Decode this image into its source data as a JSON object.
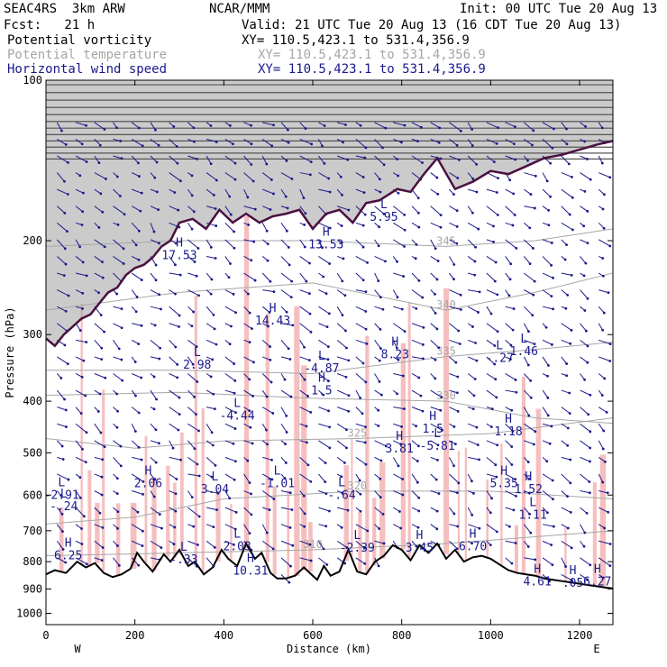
{
  "header": {
    "model": "SEAC4RS  3km ARW",
    "org": "NCAR/MMM",
    "init": "Init: 00 UTC Tue 20 Aug 13",
    "fcst": "Fcst:   21 h",
    "valid": "Valid: 21 UTC Tue 20 Aug 13 (16 CDT Tue 20 Aug 13)"
  },
  "fields": [
    {
      "name": "Potential vorticity",
      "xy": "XY= 110.5,423.1 to 531.4,356.9",
      "color": "#000000"
    },
    {
      "name": "Potential temperature",
      "xy": "XY= 110.5,423.1 to 531.4,356.9",
      "color": "#a6a6a6"
    },
    {
      "name": "Horizontal wind speed",
      "xy": "XY= 110.5,423.1 to 531.4,356.9",
      "color": "#1a1a8c"
    }
  ],
  "chart_data": {
    "type": "cross-section",
    "xlabel": "Distance (km)",
    "ylabel": "Pressure (hPa)",
    "xlim": [
      0,
      1275
    ],
    "ylim": [
      1050,
      100
    ],
    "y_scale": "log",
    "xticks": [
      0,
      200,
      400,
      600,
      800,
      1000,
      1200
    ],
    "yticks": [
      100,
      200,
      300,
      400,
      500,
      600,
      700,
      800,
      900,
      1000
    ],
    "end_labels": {
      "left": "W",
      "right": "E"
    },
    "colors": {
      "pv": "#4a1040",
      "theta": "#a6a6a6",
      "wind": "#1a1a8c",
      "shade": "#f4b8b8",
      "terrain": "#000000"
    },
    "terrain_hpa": [
      [
        0,
        845
      ],
      [
        20,
        830
      ],
      [
        45,
        840
      ],
      [
        70,
        800
      ],
      [
        90,
        820
      ],
      [
        110,
        805
      ],
      [
        130,
        840
      ],
      [
        150,
        855
      ],
      [
        170,
        845
      ],
      [
        190,
        825
      ],
      [
        205,
        770
      ],
      [
        220,
        800
      ],
      [
        240,
        835
      ],
      [
        265,
        775
      ],
      [
        280,
        800
      ],
      [
        300,
        760
      ],
      [
        320,
        815
      ],
      [
        335,
        800
      ],
      [
        355,
        845
      ],
      [
        375,
        820
      ],
      [
        395,
        760
      ],
      [
        410,
        790
      ],
      [
        430,
        815
      ],
      [
        450,
        740
      ],
      [
        470,
        790
      ],
      [
        485,
        770
      ],
      [
        505,
        840
      ],
      [
        520,
        860
      ],
      [
        540,
        860
      ],
      [
        560,
        850
      ],
      [
        580,
        820
      ],
      [
        600,
        850
      ],
      [
        610,
        865
      ],
      [
        625,
        815
      ],
      [
        640,
        850
      ],
      [
        660,
        835
      ],
      [
        680,
        760
      ],
      [
        700,
        835
      ],
      [
        720,
        845
      ],
      [
        740,
        800
      ],
      [
        760,
        780
      ],
      [
        780,
        745
      ],
      [
        800,
        760
      ],
      [
        820,
        795
      ],
      [
        840,
        745
      ],
      [
        860,
        770
      ],
      [
        880,
        740
      ],
      [
        900,
        790
      ],
      [
        920,
        760
      ],
      [
        940,
        800
      ],
      [
        960,
        785
      ],
      [
        980,
        780
      ],
      [
        1000,
        790
      ],
      [
        1020,
        810
      ],
      [
        1040,
        830
      ],
      [
        1060,
        840
      ],
      [
        1080,
        845
      ],
      [
        1100,
        850
      ],
      [
        1120,
        860
      ],
      [
        1140,
        865
      ],
      [
        1160,
        870
      ],
      [
        1180,
        875
      ],
      [
        1200,
        880
      ],
      [
        1220,
        885
      ],
      [
        1240,
        890
      ],
      [
        1260,
        895
      ],
      [
        1275,
        898
      ]
    ],
    "pv_tropopause_hpa": [
      [
        0,
        305
      ],
      [
        20,
        315
      ],
      [
        40,
        300
      ],
      [
        60,
        290
      ],
      [
        80,
        280
      ],
      [
        100,
        275
      ],
      [
        120,
        262
      ],
      [
        140,
        250
      ],
      [
        160,
        245
      ],
      [
        180,
        232
      ],
      [
        200,
        225
      ],
      [
        220,
        222
      ],
      [
        240,
        215
      ],
      [
        260,
        205
      ],
      [
        280,
        200
      ],
      [
        300,
        185
      ],
      [
        330,
        182
      ],
      [
        360,
        190
      ],
      [
        390,
        175
      ],
      [
        420,
        185
      ],
      [
        450,
        178
      ],
      [
        480,
        185
      ],
      [
        510,
        180
      ],
      [
        540,
        178
      ],
      [
        570,
        175
      ],
      [
        600,
        190
      ],
      [
        630,
        178
      ],
      [
        660,
        175
      ],
      [
        690,
        185
      ],
      [
        720,
        170
      ],
      [
        750,
        168
      ],
      [
        790,
        160
      ],
      [
        820,
        162
      ],
      [
        850,
        150
      ],
      [
        880,
        140
      ],
      [
        920,
        160
      ],
      [
        960,
        155
      ],
      [
        1000,
        148
      ],
      [
        1040,
        150
      ],
      [
        1080,
        145
      ],
      [
        1120,
        140
      ],
      [
        1160,
        138
      ],
      [
        1200,
        135
      ],
      [
        1240,
        132
      ],
      [
        1275,
        130
      ]
    ],
    "theta_contours": [
      {
        "label": "310",
        "pts": [
          [
            0,
            780
          ],
          [
            300,
            770
          ],
          [
            600,
            760
          ],
          [
            900,
            740
          ],
          [
            1275,
            700
          ]
        ]
      },
      {
        "label": "320",
        "pts": [
          [
            0,
            680
          ],
          [
            200,
            660
          ],
          [
            400,
            610
          ],
          [
            700,
            590
          ],
          [
            1000,
            590
          ],
          [
            1275,
            610
          ]
        ]
      },
      {
        "label": "325",
        "pts": [
          [
            0,
            470
          ],
          [
            200,
            490
          ],
          [
            400,
            475
          ],
          [
            700,
            470
          ],
          [
            1000,
            460
          ],
          [
            1275,
            430
          ]
        ]
      },
      {
        "label": "330",
        "pts": [
          [
            0,
            390
          ],
          [
            300,
            385
          ],
          [
            600,
            395
          ],
          [
            900,
            400
          ],
          [
            1100,
            430
          ],
          [
            1275,
            440
          ]
        ]
      },
      {
        "label": "335",
        "pts": [
          [
            0,
            350
          ],
          [
            300,
            350
          ],
          [
            600,
            355
          ],
          [
            900,
            330
          ],
          [
            1100,
            320
          ],
          [
            1275,
            310
          ]
        ]
      },
      {
        "label": "340",
        "pts": [
          [
            0,
            270
          ],
          [
            300,
            250
          ],
          [
            600,
            240
          ],
          [
            900,
            270
          ],
          [
            1100,
            250
          ],
          [
            1275,
            230
          ]
        ]
      },
      {
        "label": "345",
        "pts": [
          [
            0,
            205
          ],
          [
            300,
            200
          ],
          [
            600,
            200
          ],
          [
            900,
            205
          ],
          [
            1100,
            200
          ],
          [
            1275,
            190
          ]
        ]
      }
    ],
    "extrema_labels": [
      {
        "t": "H",
        "v": "17.53",
        "x": 300,
        "p": 215
      },
      {
        "t": "H",
        "v": "13.53",
        "x": 630,
        "p": 205
      },
      {
        "t": "H",
        "v": "14.43",
        "x": 510,
        "p": 285
      },
      {
        "t": "L",
        "v": "5.95",
        "x": 760,
        "p": 182
      },
      {
        "t": "L",
        "v": "2.98",
        "x": 340,
        "p": 345
      },
      {
        "t": "L",
        "v": "-4.87",
        "x": 620,
        "p": 350
      },
      {
        "t": "H",
        "v": "8.23",
        "x": 785,
        "p": 330
      },
      {
        "t": "L",
        "v": "-.27",
        "x": 1020,
        "p": 335
      },
      {
        "t": "L",
        "v": "1.46",
        "x": 1075,
        "p": 325
      },
      {
        "t": "H",
        "v": "1.5",
        "x": 620,
        "p": 385
      },
      {
        "t": "L",
        "v": "-4.44",
        "x": 430,
        "p": 430
      },
      {
        "t": "H",
        "v": "1.18",
        "x": 1040,
        "p": 460
      },
      {
        "t": "H",
        "v": "1.5",
        "x": 870,
        "p": 455
      },
      {
        "t": "L",
        "v": "-5.81",
        "x": 880,
        "p": 490
      },
      {
        "t": "H",
        "v": "3.81",
        "x": 795,
        "p": 495
      },
      {
        "t": "H",
        "v": "2.06",
        "x": 230,
        "p": 575
      },
      {
        "t": "H",
        "v": "5.35",
        "x": 1030,
        "p": 575
      },
      {
        "t": "H",
        "v": "1.52",
        "x": 1085,
        "p": 590
      },
      {
        "t": "L",
        "v": "-2.91",
        "x": 35,
        "p": 605
      },
      {
        "t": "L",
        "v": "-.24",
        "x": 40,
        "p": 635
      },
      {
        "t": "L",
        "v": "3.04",
        "x": 380,
        "p": 590
      },
      {
        "t": "L",
        "v": "-1.01",
        "x": 520,
        "p": 575
      },
      {
        "t": "L",
        "v": "-.64",
        "x": 665,
        "p": 605
      },
      {
        "t": "L",
        "v": "1.11",
        "x": 1095,
        "p": 660
      },
      {
        "t": "H",
        "v": "6.25",
        "x": 50,
        "p": 785
      },
      {
        "t": "L",
        "v": "2.03",
        "x": 430,
        "p": 755
      },
      {
        "t": "L",
        "v": "-2.39",
        "x": 700,
        "p": 760
      },
      {
        "t": "H",
        "v": "3.45",
        "x": 840,
        "p": 760
      },
      {
        "t": "H",
        "v": "6.70",
        "x": 960,
        "p": 755
      },
      {
        "t": "L",
        "v": "-.33",
        "x": 310,
        "p": 800
      },
      {
        "t": "H",
        "v": "10.31",
        "x": 460,
        "p": 840
      },
      {
        "t": "H",
        "v": "4.61",
        "x": 1105,
        "p": 880
      },
      {
        "t": "H",
        "v": ".05",
        "x": 1185,
        "p": 885
      },
      {
        "t": "H",
        "v": "6.27",
        "x": 1240,
        "p": 880
      }
    ]
  }
}
